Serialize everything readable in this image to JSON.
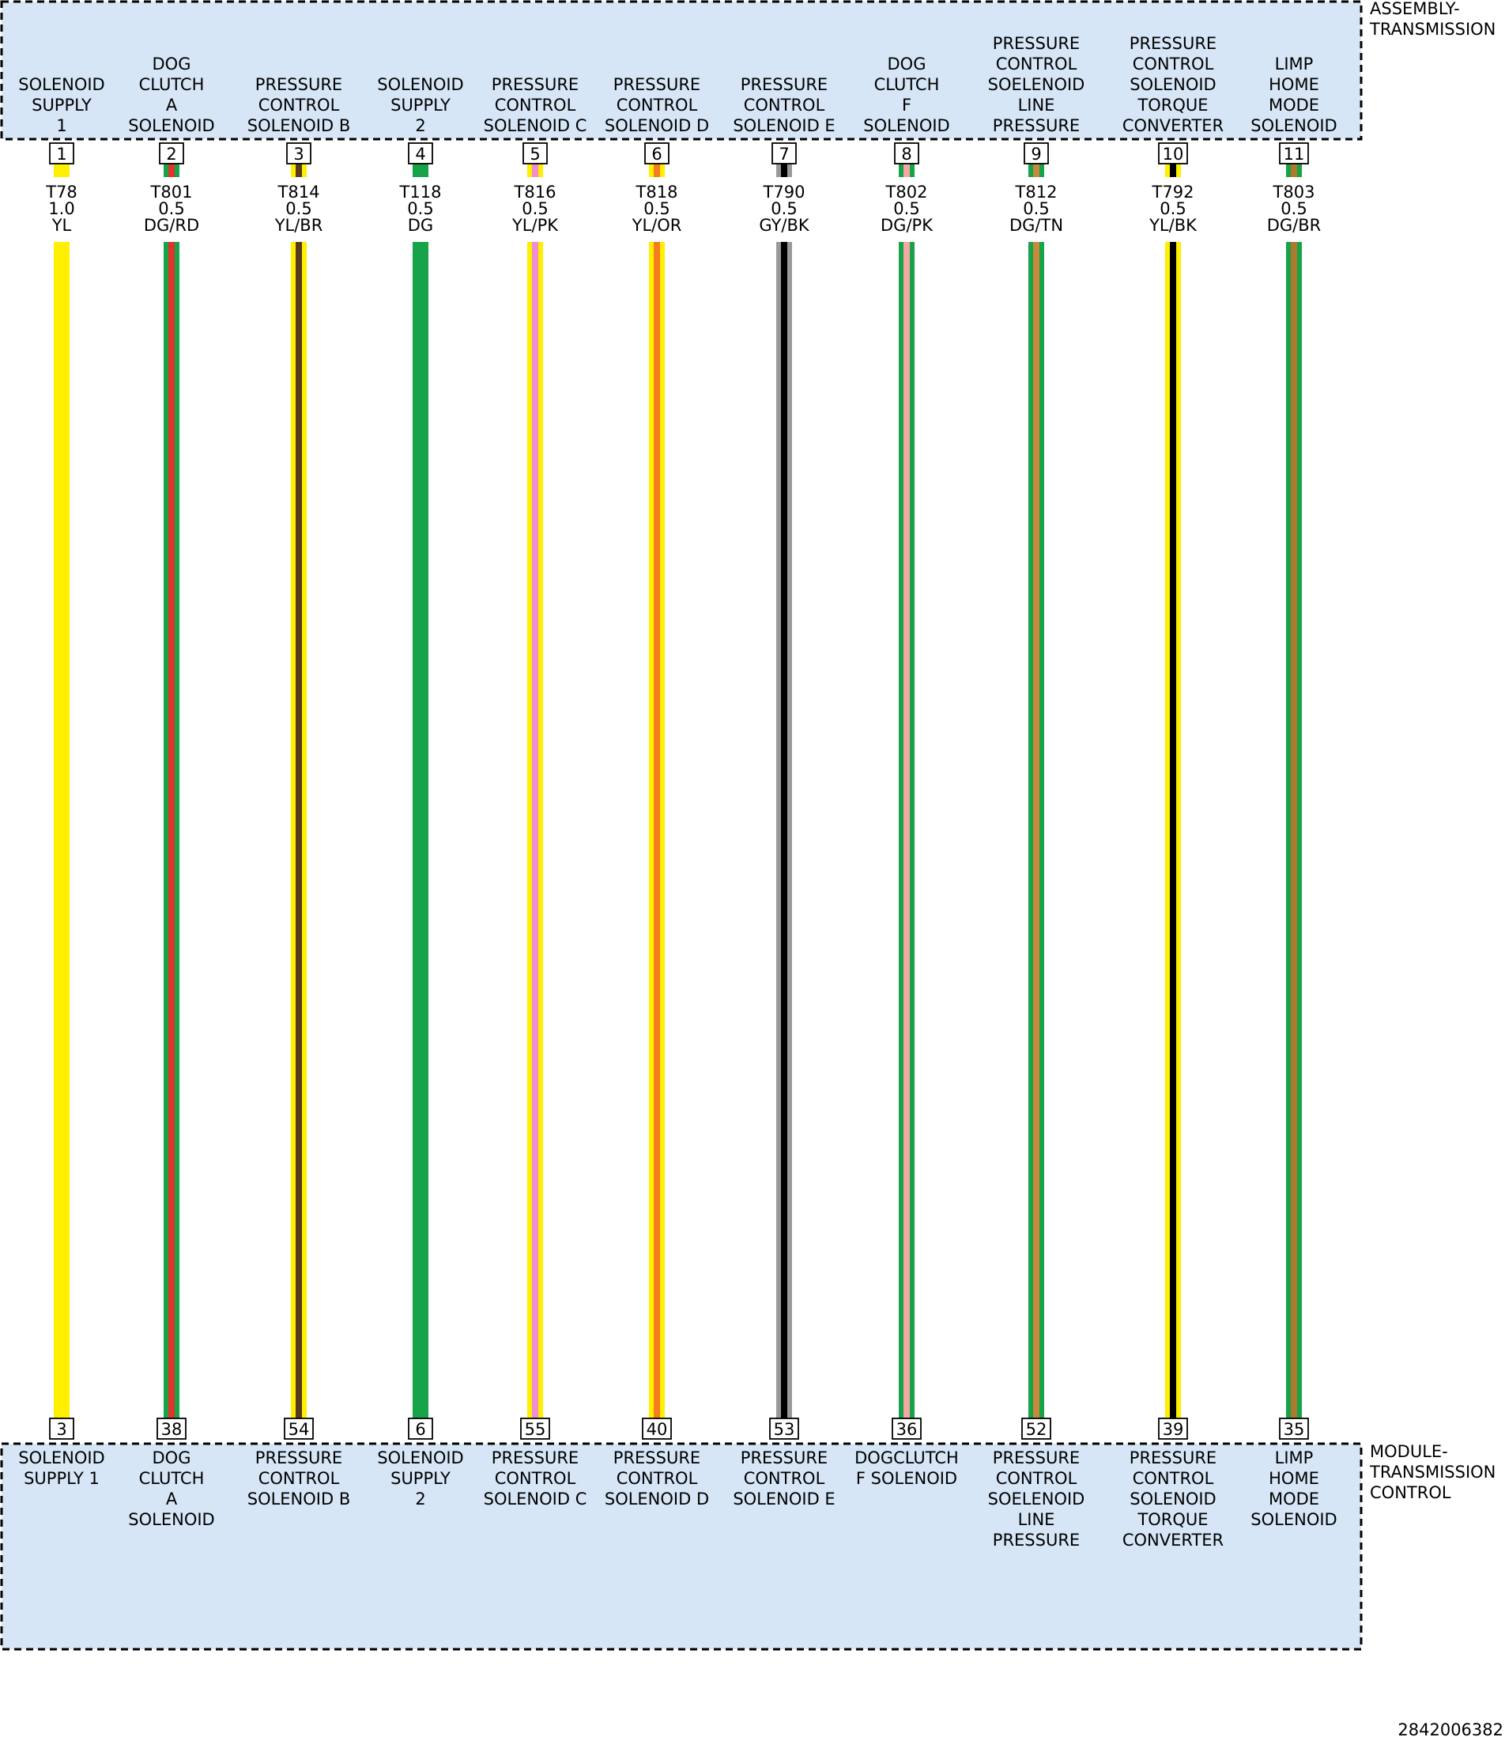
{
  "top_component": {
    "name_lines": [
      "ASSEMBLY-",
      "TRANSMISSION"
    ]
  },
  "bottom_component": {
    "name_lines": [
      "MODULE-",
      "TRANSMISSION",
      "CONTROL"
    ]
  },
  "diagram_id": "2842006382",
  "circuits": [
    {
      "top_pin": "1",
      "top_label": [
        "SOLENOID",
        "SUPPLY",
        "1"
      ],
      "circuit": "T78",
      "gauge": "1.0",
      "color_code": "YL",
      "base_color": "#ffef00",
      "stripe_color": "",
      "bottom_pin": "3",
      "bottom_label": [
        "SOLENOID",
        "SUPPLY 1"
      ]
    },
    {
      "top_pin": "2",
      "top_label": [
        "DOG",
        "CLUTCH",
        "A",
        "SOLENOID"
      ],
      "circuit": "T801",
      "gauge": "0.5",
      "color_code": "DG/RD",
      "base_color": "#16a34a",
      "stripe_color": "#e0332a",
      "bottom_pin": "38",
      "bottom_label": [
        "DOG",
        "CLUTCH",
        "A",
        "SOLENOID"
      ]
    },
    {
      "top_pin": "3",
      "top_label": [
        "PRESSURE",
        "CONTROL",
        "SOLENOID B"
      ],
      "circuit": "T814",
      "gauge": "0.5",
      "color_code": "YL/BR",
      "base_color": "#ffef00",
      "stripe_color": "#5a3a1e",
      "bottom_pin": "54",
      "bottom_label": [
        "PRESSURE",
        "CONTROL",
        "SOLENOID B"
      ]
    },
    {
      "top_pin": "4",
      "top_label": [
        "SOLENOID",
        "SUPPLY",
        "2"
      ],
      "circuit": "T118",
      "gauge": "0.5",
      "color_code": "DG",
      "base_color": "#16a34a",
      "stripe_color": "",
      "bottom_pin": "6",
      "bottom_label": [
        "SOLENOID",
        "SUPPLY",
        "2"
      ]
    },
    {
      "top_pin": "5",
      "top_label": [
        "PRESSURE",
        "CONTROL",
        "SOLENOID C"
      ],
      "circuit": "T816",
      "gauge": "0.5",
      "color_code": "YL/PK",
      "base_color": "#ffef00",
      "stripe_color": "#f08fcf",
      "bottom_pin": "55",
      "bottom_label": [
        "PRESSURE",
        "CONTROL",
        "SOLENOID C"
      ]
    },
    {
      "top_pin": "6",
      "top_label": [
        "PRESSURE",
        "CONTROL",
        "SOLENOID D"
      ],
      "circuit": "T818",
      "gauge": "0.5",
      "color_code": "YL/OR",
      "base_color": "#ffef00",
      "stripe_color": "#f57c1f",
      "bottom_pin": "40",
      "bottom_label": [
        "PRESSURE",
        "CONTROL",
        "SOLENOID D"
      ]
    },
    {
      "top_pin": "7",
      "top_label": [
        "PRESSURE",
        "CONTROL",
        "SOLENOID E"
      ],
      "circuit": "T790",
      "gauge": "0.5",
      "color_code": "GY/BK",
      "base_color": "#9a9a9a",
      "stripe_color": "#000000",
      "bottom_pin": "53",
      "bottom_label": [
        "PRESSURE",
        "CONTROL",
        "SOLENOID E"
      ]
    },
    {
      "top_pin": "8",
      "top_label": [
        "DOG",
        "CLUTCH",
        "F",
        "SOLENOID"
      ],
      "circuit": "T802",
      "gauge": "0.5",
      "color_code": "DG/PK",
      "base_color": "#16a34a",
      "stripe_color": "#f4a7a3",
      "bottom_pin": "36",
      "bottom_label": [
        "DOGCLUTCH",
        "F SOLENOID"
      ]
    },
    {
      "top_pin": "9",
      "top_label": [
        "PRESSURE",
        "CONTROL",
        "SOELENOID",
        "LINE",
        "PRESSURE"
      ],
      "circuit": "T812",
      "gauge": "0.5",
      "color_code": "DG/TN",
      "base_color": "#16a34a",
      "stripe_color": "#c8893c",
      "bottom_pin": "52",
      "bottom_label": [
        "PRESSURE",
        "CONTROL",
        "SOELENOID",
        "LINE",
        "PRESSURE"
      ]
    },
    {
      "top_pin": "10",
      "top_label": [
        "PRESSURE",
        "CONTROL",
        "SOLENOID",
        "TORQUE",
        "CONVERTER"
      ],
      "circuit": "T792",
      "gauge": "0.5",
      "color_code": "YL/BK",
      "base_color": "#ffef00",
      "stripe_color": "#000000",
      "bottom_pin": "39",
      "bottom_label": [
        "PRESSURE",
        "CONTROL",
        "SOLENOID",
        "TORQUE",
        "CONVERTER"
      ]
    },
    {
      "top_pin": "11",
      "top_label": [
        "LIMP",
        "HOME",
        "MODE",
        "SOLENOID"
      ],
      "circuit": "T803",
      "gauge": "0.5",
      "color_code": "DG/BR",
      "base_color": "#16a34a",
      "stripe_color": "#b07a2e",
      "bottom_pin": "35",
      "bottom_label": [
        "LIMP",
        "HOME",
        "MODE",
        "SOLENOID"
      ]
    }
  ]
}
